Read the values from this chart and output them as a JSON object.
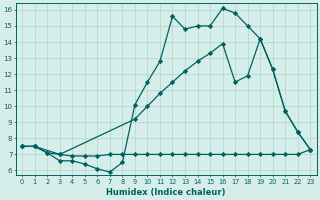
{
  "xlabel": "Humidex (Indice chaleur)",
  "xlim": [
    -0.5,
    23.5
  ],
  "ylim": [
    5.7,
    16.4
  ],
  "xticks": [
    0,
    1,
    2,
    3,
    4,
    5,
    6,
    7,
    8,
    9,
    10,
    11,
    12,
    13,
    14,
    15,
    16,
    17,
    18,
    19,
    20,
    21,
    22,
    23
  ],
  "yticks": [
    6,
    7,
    8,
    9,
    10,
    11,
    12,
    13,
    14,
    15,
    16
  ],
  "background_color": "#d6eeea",
  "grid_color": "#b0d4ce",
  "line_color": "#006060",
  "line1_x": [
    0,
    1,
    2,
    3,
    4,
    5,
    6,
    7,
    8,
    9,
    10,
    11,
    12,
    13,
    14,
    15,
    16,
    17,
    18,
    19,
    20,
    21,
    22,
    23
  ],
  "line1_y": [
    7.5,
    7.5,
    7.1,
    6.6,
    6.6,
    6.4,
    6.1,
    5.9,
    6.5,
    10.1,
    11.5,
    12.8,
    15.6,
    14.8,
    15.0,
    15.0,
    16.1,
    15.8,
    15.0,
    14.2,
    12.3,
    9.7,
    8.4,
    7.3
  ],
  "line2_x": [
    0,
    1,
    3,
    4,
    5,
    6,
    7,
    8,
    9,
    10,
    11,
    12,
    13,
    14,
    15,
    16,
    17,
    18,
    19,
    20,
    21,
    22,
    23
  ],
  "line2_y": [
    7.5,
    7.5,
    7.0,
    6.9,
    6.9,
    6.9,
    7.0,
    7.0,
    7.0,
    7.0,
    7.0,
    7.0,
    7.0,
    7.0,
    7.0,
    7.0,
    7.0,
    7.0,
    7.0,
    7.0,
    7.0,
    7.0,
    7.3
  ],
  "line3_x": [
    0,
    1,
    2,
    3,
    9,
    10,
    11,
    12,
    13,
    14,
    15,
    16,
    17,
    18,
    19,
    20,
    21,
    22,
    23
  ],
  "line3_y": [
    7.5,
    7.5,
    7.1,
    7.0,
    9.2,
    10.0,
    10.8,
    11.5,
    12.2,
    12.8,
    13.3,
    13.9,
    11.5,
    11.9,
    14.2,
    12.3,
    9.7,
    8.4,
    7.3
  ]
}
